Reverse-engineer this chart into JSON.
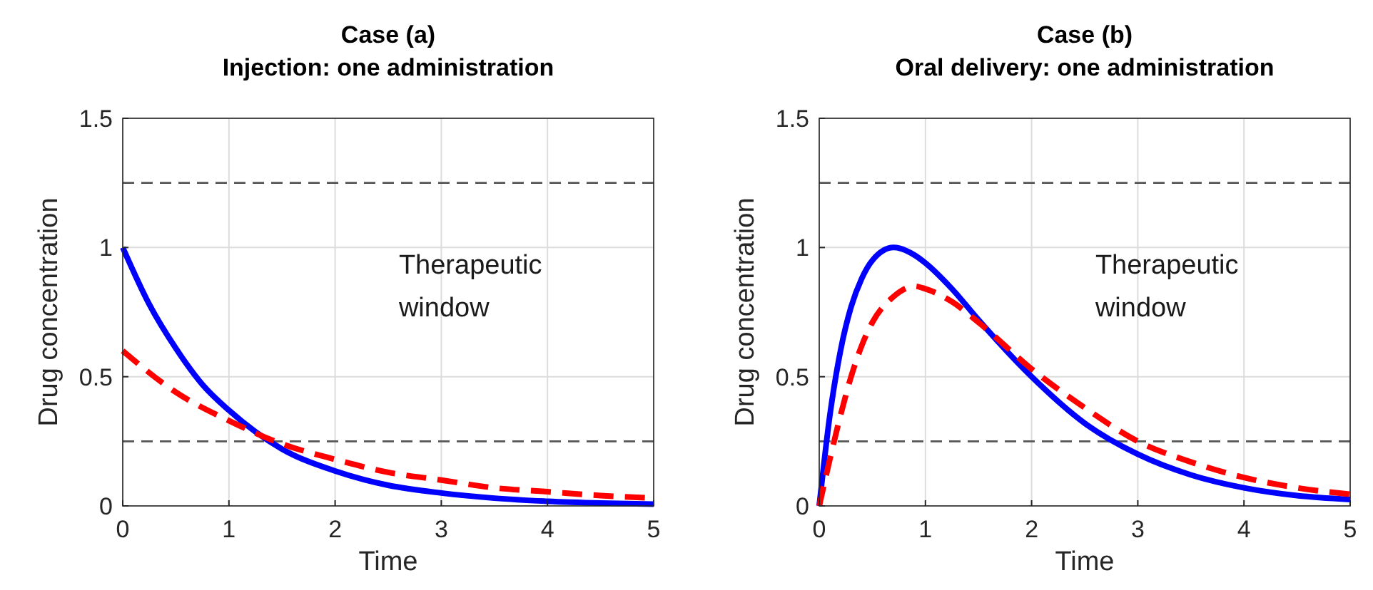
{
  "chart_data": [
    {
      "type": "line",
      "title": "Case (a)",
      "subtitle": "Injection: one administration",
      "xlabel": "Time",
      "ylabel": "Drug concentration",
      "xlim": [
        0,
        5
      ],
      "ylim": [
        0,
        1.5
      ],
      "xticks": [
        0,
        1,
        2,
        3,
        4,
        5
      ],
      "yticks": [
        0,
        0.5,
        1,
        1.5
      ],
      "grid": true,
      "annotations": [
        "Therapeutic window"
      ],
      "ref_lines": [
        {
          "axis": "y",
          "value": 0.25,
          "color": "#555555",
          "line_style": "dashed"
        },
        {
          "axis": "y",
          "value": 1.25,
          "color": "#555555",
          "line_style": "dashed"
        }
      ],
      "series": [
        {
          "color": "#0000ff",
          "line_style": "solid",
          "x": [
            0,
            0.25,
            0.5,
            0.75,
            1,
            1.5,
            2,
            2.5,
            3,
            3.5,
            4,
            4.5,
            5
          ],
          "values": [
            1,
            0.78,
            0.61,
            0.47,
            0.37,
            0.22,
            0.135,
            0.08,
            0.05,
            0.03,
            0.018,
            0.011,
            0.007
          ]
        },
        {
          "color": "#ff0000",
          "line_style": "dashed",
          "x": [
            0,
            0.5,
            1,
            1.5,
            2,
            2.5,
            3,
            3.5,
            4,
            4.5,
            5
          ],
          "values": [
            0.6,
            0.44,
            0.33,
            0.24,
            0.18,
            0.13,
            0.1,
            0.07,
            0.055,
            0.04,
            0.03
          ]
        }
      ]
    },
    {
      "type": "line",
      "title": "Case (b)",
      "subtitle": "Oral delivery: one administration",
      "xlabel": "Time",
      "ylabel": "Drug concentration",
      "xlim": [
        0,
        5
      ],
      "ylim": [
        0,
        1.5
      ],
      "xticks": [
        0,
        1,
        2,
        3,
        4,
        5
      ],
      "yticks": [
        0,
        0.5,
        1,
        1.5
      ],
      "grid": true,
      "annotations": [
        "Therapeutic window"
      ],
      "ref_lines": [
        {
          "axis": "y",
          "value": 0.25,
          "color": "#555555",
          "line_style": "dashed"
        },
        {
          "axis": "y",
          "value": 1.25,
          "color": "#555555",
          "line_style": "dashed"
        }
      ],
      "series": [
        {
          "color": "#0000ff",
          "line_style": "solid",
          "x": [
            0,
            0.1,
            0.2,
            0.3,
            0.4,
            0.5,
            0.7,
            0.9,
            1,
            1.25,
            1.5,
            2,
            2.5,
            3,
            3.5,
            4,
            4.5,
            5
          ],
          "values": [
            0,
            0.35,
            0.6,
            0.77,
            0.88,
            0.95,
            1,
            0.97,
            0.94,
            0.84,
            0.72,
            0.5,
            0.32,
            0.2,
            0.12,
            0.07,
            0.04,
            0.025
          ]
        },
        {
          "color": "#ff0000",
          "line_style": "dashed",
          "x": [
            0,
            0.1,
            0.2,
            0.3,
            0.4,
            0.5,
            0.7,
            0.9,
            1,
            1.25,
            1.5,
            2,
            2.5,
            3,
            3.5,
            4,
            4.5,
            5
          ],
          "values": [
            0,
            0.18,
            0.35,
            0.5,
            0.62,
            0.71,
            0.81,
            0.85,
            0.84,
            0.79,
            0.71,
            0.53,
            0.38,
            0.25,
            0.17,
            0.11,
            0.07,
            0.045
          ]
        }
      ]
    }
  ]
}
